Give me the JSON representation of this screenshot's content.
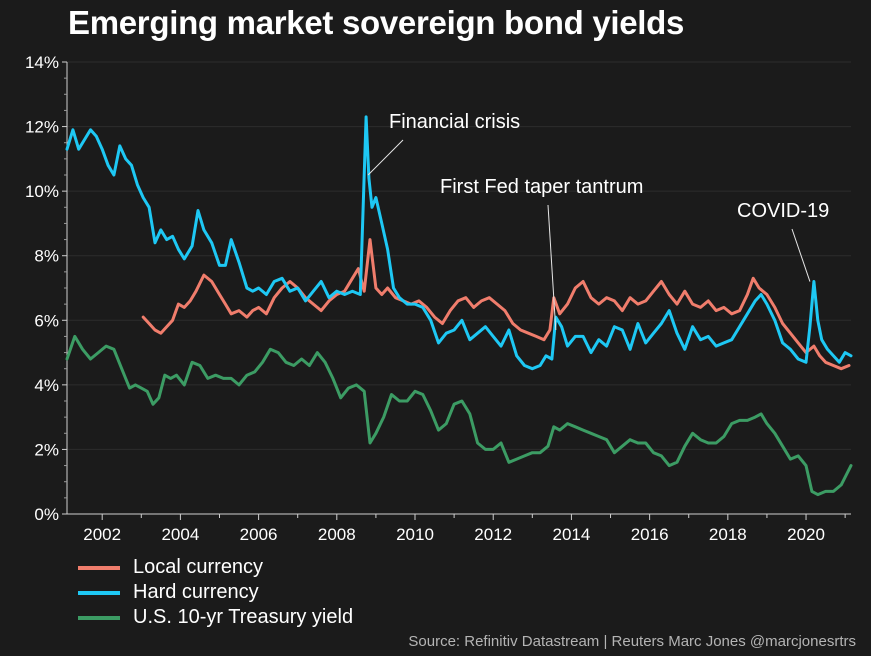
{
  "title": "Emerging market sovereign bond yields",
  "source": "Source: Refinitiv Datastream | Reuters Marc Jones @marcjonesrtrs",
  "chart_data": {
    "type": "line",
    "ylim": [
      0,
      14
    ],
    "xlim": [
      2001.1,
      2021.15
    ],
    "yticks": [
      0,
      2,
      4,
      6,
      8,
      10,
      12,
      14
    ],
    "ytick_labels": [
      "0%",
      "2%",
      "4%",
      "6%",
      "8%",
      "10%",
      "12%",
      "14%"
    ],
    "xticks": [
      2002,
      2004,
      2006,
      2008,
      2010,
      2012,
      2014,
      2016,
      2018,
      2020
    ],
    "xtick_labels": [
      "2002",
      "2004",
      "2006",
      "2008",
      "2010",
      "2012",
      "2014",
      "2016",
      "2018",
      "2020"
    ],
    "grid": true,
    "legend_position": "bottom-left",
    "series": [
      {
        "name": "Local currency",
        "color": "#f07d6c",
        "x": [
          2003.05,
          2003.2,
          2003.35,
          2003.5,
          2003.65,
          2003.8,
          2003.95,
          2004.1,
          2004.25,
          2004.4,
          2004.6,
          2004.8,
          2005.0,
          2005.15,
          2005.3,
          2005.5,
          2005.7,
          2005.85,
          2006.0,
          2006.2,
          2006.4,
          2006.6,
          2006.8,
          2007.0,
          2007.2,
          2007.4,
          2007.6,
          2007.8,
          2008.0,
          2008.2,
          2008.4,
          2008.55,
          2008.7,
          2008.85,
          2009.0,
          2009.15,
          2009.3,
          2009.5,
          2009.7,
          2009.9,
          2010.1,
          2010.3,
          2010.5,
          2010.7,
          2010.9,
          2011.1,
          2011.3,
          2011.5,
          2011.7,
          2011.9,
          2012.1,
          2012.3,
          2012.5,
          2012.7,
          2012.9,
          2013.1,
          2013.3,
          2013.45,
          2013.55,
          2013.7,
          2013.9,
          2014.1,
          2014.3,
          2014.5,
          2014.7,
          2014.9,
          2015.1,
          2015.3,
          2015.5,
          2015.7,
          2015.9,
          2016.1,
          2016.3,
          2016.5,
          2016.7,
          2016.9,
          2017.1,
          2017.3,
          2017.5,
          2017.7,
          2017.9,
          2018.1,
          2018.3,
          2018.5,
          2018.65,
          2018.8,
          2019.0,
          2019.2,
          2019.4,
          2019.6,
          2019.8,
          2020.0,
          2020.2,
          2020.35,
          2020.5,
          2020.7,
          2020.9,
          2021.1
        ],
        "y": [
          6.1,
          5.9,
          5.7,
          5.6,
          5.8,
          6.0,
          6.5,
          6.4,
          6.6,
          6.9,
          7.4,
          7.2,
          6.8,
          6.5,
          6.2,
          6.3,
          6.1,
          6.3,
          6.4,
          6.2,
          6.7,
          7.0,
          7.2,
          7.0,
          6.7,
          6.5,
          6.3,
          6.6,
          6.8,
          6.9,
          7.3,
          7.6,
          6.9,
          8.5,
          7.0,
          6.8,
          7.0,
          6.7,
          6.6,
          6.5,
          6.6,
          6.4,
          6.1,
          5.9,
          6.3,
          6.6,
          6.7,
          6.4,
          6.6,
          6.7,
          6.5,
          6.3,
          5.9,
          5.7,
          5.6,
          5.5,
          5.4,
          5.7,
          6.7,
          6.2,
          6.5,
          7.0,
          7.2,
          6.7,
          6.5,
          6.7,
          6.6,
          6.3,
          6.7,
          6.5,
          6.6,
          6.9,
          7.2,
          6.8,
          6.5,
          6.9,
          6.5,
          6.4,
          6.6,
          6.3,
          6.4,
          6.2,
          6.3,
          6.8,
          7.3,
          7.0,
          6.8,
          6.4,
          5.9,
          5.6,
          5.3,
          5.0,
          5.2,
          4.9,
          4.7,
          4.6,
          4.5,
          4.6
        ]
      },
      {
        "name": "Hard currency",
        "color": "#1ec8f4",
        "x": [
          2001.1,
          2001.25,
          2001.4,
          2001.55,
          2001.7,
          2001.85,
          2002.0,
          2002.15,
          2002.3,
          2002.45,
          2002.6,
          2002.75,
          2002.9,
          2003.05,
          2003.2,
          2003.35,
          2003.5,
          2003.65,
          2003.8,
          2003.95,
          2004.1,
          2004.3,
          2004.45,
          2004.6,
          2004.8,
          2005.0,
          2005.15,
          2005.3,
          2005.5,
          2005.7,
          2005.85,
          2006.0,
          2006.2,
          2006.4,
          2006.6,
          2006.8,
          2007.0,
          2007.2,
          2007.4,
          2007.6,
          2007.8,
          2008.0,
          2008.2,
          2008.4,
          2008.6,
          2008.75,
          2008.82,
          2008.9,
          2009.0,
          2009.15,
          2009.3,
          2009.45,
          2009.6,
          2009.8,
          2010.0,
          2010.2,
          2010.4,
          2010.6,
          2010.8,
          2011.0,
          2011.2,
          2011.4,
          2011.6,
          2011.8,
          2012.0,
          2012.2,
          2012.4,
          2012.6,
          2012.8,
          2013.0,
          2013.2,
          2013.35,
          2013.5,
          2013.6,
          2013.75,
          2013.9,
          2014.1,
          2014.3,
          2014.5,
          2014.7,
          2014.9,
          2015.1,
          2015.3,
          2015.5,
          2015.7,
          2015.9,
          2016.1,
          2016.3,
          2016.5,
          2016.7,
          2016.9,
          2017.1,
          2017.3,
          2017.5,
          2017.7,
          2017.9,
          2018.1,
          2018.3,
          2018.5,
          2018.7,
          2018.85,
          2019.0,
          2019.2,
          2019.4,
          2019.6,
          2019.8,
          2020.0,
          2020.1,
          2020.2,
          2020.3,
          2020.4,
          2020.55,
          2020.7,
          2020.85,
          2021.0,
          2021.15
        ],
        "y": [
          11.3,
          11.9,
          11.3,
          11.6,
          11.9,
          11.7,
          11.3,
          10.8,
          10.5,
          11.4,
          11.0,
          10.8,
          10.2,
          9.8,
          9.5,
          8.4,
          8.8,
          8.5,
          8.6,
          8.2,
          7.9,
          8.3,
          9.4,
          8.8,
          8.4,
          7.7,
          7.7,
          8.5,
          7.8,
          7.0,
          6.9,
          7.0,
          6.8,
          7.2,
          7.3,
          6.9,
          7.0,
          6.6,
          6.9,
          7.2,
          6.7,
          6.9,
          6.8,
          6.9,
          6.8,
          12.3,
          10.4,
          9.5,
          9.8,
          9.0,
          8.2,
          7.0,
          6.7,
          6.5,
          6.5,
          6.4,
          6.0,
          5.3,
          5.6,
          5.7,
          6.0,
          5.4,
          5.6,
          5.8,
          5.5,
          5.2,
          5.7,
          4.9,
          4.6,
          4.5,
          4.6,
          4.9,
          4.8,
          6.1,
          5.8,
          5.2,
          5.5,
          5.5,
          5.0,
          5.4,
          5.2,
          5.8,
          5.7,
          5.1,
          5.9,
          5.3,
          5.6,
          5.9,
          6.3,
          5.6,
          5.1,
          5.8,
          5.4,
          5.5,
          5.2,
          5.3,
          5.4,
          5.8,
          6.2,
          6.6,
          6.8,
          6.5,
          6.0,
          5.3,
          5.1,
          4.8,
          4.7,
          5.8,
          7.2,
          6.0,
          5.4,
          5.1,
          4.9,
          4.7,
          5.0,
          4.9
        ]
      },
      {
        "name": "U.S. 10-yr Treasury yield",
        "color": "#3c9c64",
        "x": [
          2001.1,
          2001.3,
          2001.5,
          2001.7,
          2001.9,
          2002.1,
          2002.3,
          2002.5,
          2002.7,
          2002.85,
          2003.0,
          2003.15,
          2003.3,
          2003.45,
          2003.6,
          2003.75,
          2003.9,
          2004.1,
          2004.3,
          2004.5,
          2004.7,
          2004.9,
          2005.1,
          2005.3,
          2005.5,
          2005.7,
          2005.9,
          2006.1,
          2006.3,
          2006.5,
          2006.7,
          2006.9,
          2007.1,
          2007.3,
          2007.5,
          2007.7,
          2007.9,
          2008.1,
          2008.3,
          2008.5,
          2008.7,
          2008.85,
          2009.0,
          2009.2,
          2009.4,
          2009.6,
          2009.8,
          2010.0,
          2010.2,
          2010.4,
          2010.6,
          2010.8,
          2011.0,
          2011.2,
          2011.4,
          2011.6,
          2011.8,
          2012.0,
          2012.2,
          2012.4,
          2012.6,
          2012.8,
          2013.0,
          2013.2,
          2013.4,
          2013.55,
          2013.7,
          2013.9,
          2014.1,
          2014.3,
          2014.5,
          2014.7,
          2014.9,
          2015.1,
          2015.3,
          2015.5,
          2015.7,
          2015.9,
          2016.1,
          2016.3,
          2016.5,
          2016.7,
          2016.9,
          2017.1,
          2017.3,
          2017.5,
          2017.7,
          2017.9,
          2018.1,
          2018.3,
          2018.5,
          2018.7,
          2018.85,
          2019.0,
          2019.2,
          2019.4,
          2019.6,
          2019.8,
          2020.0,
          2020.15,
          2020.3,
          2020.5,
          2020.7,
          2020.9,
          2021.15
        ],
        "y": [
          4.8,
          5.5,
          5.1,
          4.8,
          5.0,
          5.2,
          5.1,
          4.5,
          3.9,
          4.0,
          3.9,
          3.8,
          3.4,
          3.6,
          4.3,
          4.2,
          4.3,
          4.0,
          4.7,
          4.6,
          4.2,
          4.3,
          4.2,
          4.2,
          4.0,
          4.3,
          4.4,
          4.7,
          5.1,
          5.0,
          4.7,
          4.6,
          4.8,
          4.6,
          5.0,
          4.7,
          4.2,
          3.6,
          3.9,
          4.0,
          3.8,
          2.2,
          2.5,
          3.0,
          3.7,
          3.5,
          3.5,
          3.8,
          3.7,
          3.2,
          2.6,
          2.8,
          3.4,
          3.5,
          3.1,
          2.2,
          2.0,
          2.0,
          2.2,
          1.6,
          1.7,
          1.8,
          1.9,
          1.9,
          2.1,
          2.7,
          2.6,
          2.8,
          2.7,
          2.6,
          2.5,
          2.4,
          2.3,
          1.9,
          2.1,
          2.3,
          2.2,
          2.2,
          1.9,
          1.8,
          1.5,
          1.6,
          2.1,
          2.5,
          2.3,
          2.2,
          2.2,
          2.4,
          2.8,
          2.9,
          2.9,
          3.0,
          3.1,
          2.8,
          2.5,
          2.1,
          1.7,
          1.8,
          1.5,
          0.7,
          0.6,
          0.7,
          0.7,
          0.9,
          1.5
        ]
      }
    ],
    "annotations": [
      {
        "text": "Financial crisis",
        "x": 2008.8,
        "y": 10.5
      },
      {
        "text": "First Fed taper tantrum",
        "x": 2013.6,
        "y": 5.7
      },
      {
        "text": "COVID-19",
        "x": 2020.1,
        "y": 7.2
      }
    ]
  }
}
